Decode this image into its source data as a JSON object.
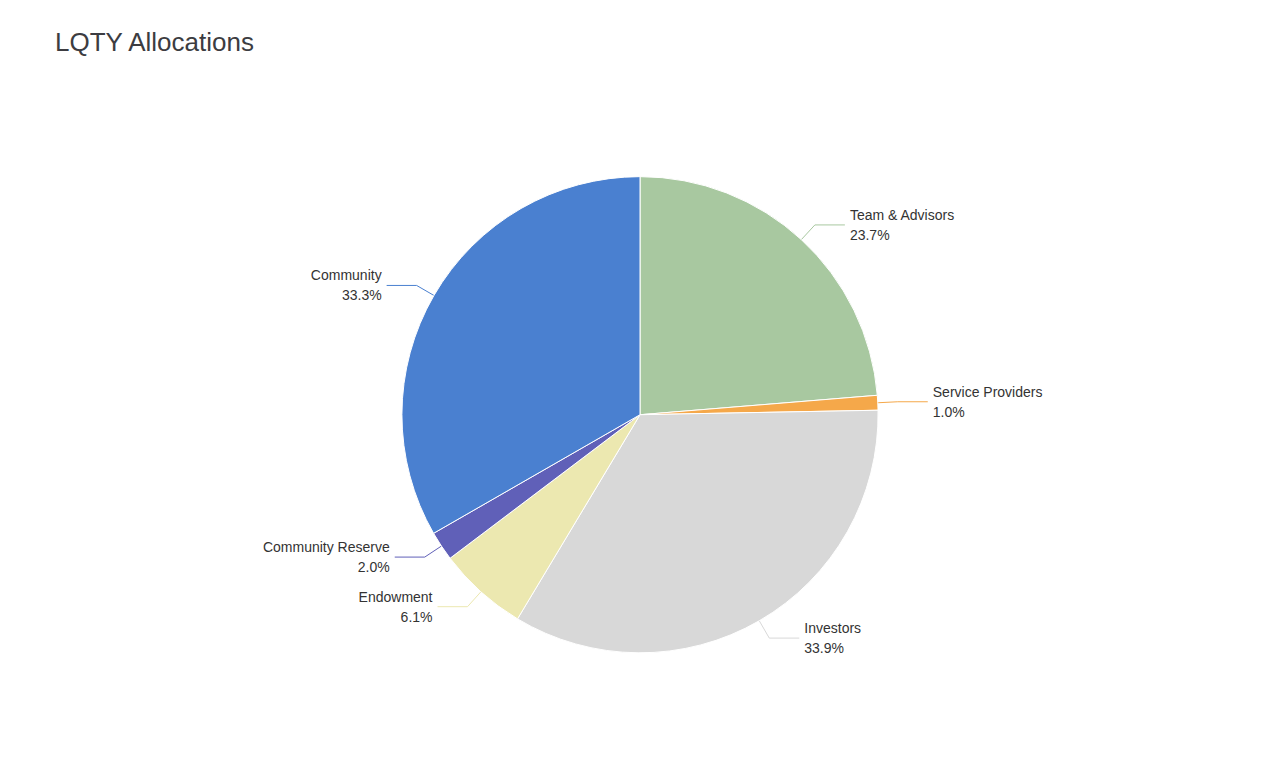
{
  "chart_data": {
    "type": "pie",
    "title": "LQTY Allocations",
    "categories": [
      "Team & Advisors",
      "Service Providers",
      "Investors",
      "Endowment",
      "Community Reserve",
      "Community"
    ],
    "values": [
      23.7,
      1.0,
      33.9,
      6.1,
      2.0,
      33.3
    ],
    "value_labels": [
      "23.7%",
      "1.0%",
      "33.9%",
      "6.1%",
      "2.0%",
      "33.3%"
    ],
    "colors": [
      "#a8c8a0",
      "#f5a84a",
      "#d8d8d8",
      "#ece8b0",
      "#6060b8",
      "#4a80d0"
    ],
    "data_labels": true
  }
}
